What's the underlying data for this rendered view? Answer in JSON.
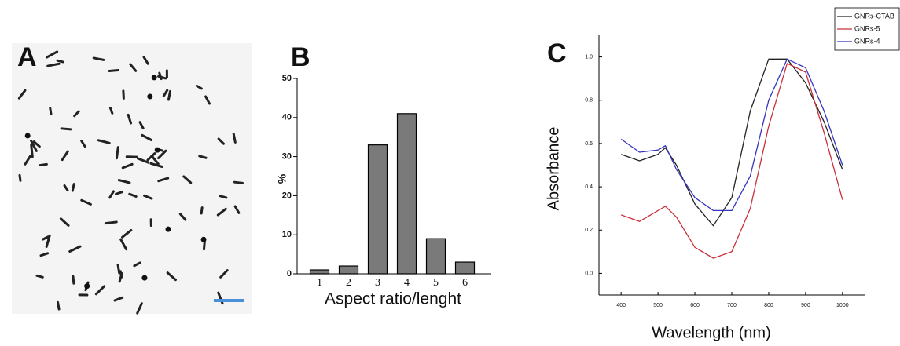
{
  "panel_a": {
    "label": "A"
  },
  "chart_data": [
    {
      "type": "bar",
      "label": "B",
      "xlabel": "Aspect ratio/lenght",
      "ylabel": "%",
      "categories": [
        "1",
        "2",
        "3",
        "4",
        "5",
        "6"
      ],
      "values": [
        1,
        2,
        33,
        41,
        9,
        3
      ],
      "color": "#7a7a7a",
      "ylim": [
        0,
        50
      ],
      "yticks": [
        0,
        10,
        20,
        30,
        40,
        50
      ],
      "grid": false
    },
    {
      "type": "line",
      "label": "C",
      "xlabel": "Wavelength (nm)",
      "ylabel": "Absorbance",
      "x": [
        400,
        450,
        500,
        520,
        550,
        600,
        650,
        700,
        750,
        800,
        850,
        900,
        950,
        1000
      ],
      "series": [
        {
          "name": "GNRs-CTAB",
          "color": "#222222",
          "values": [
            0.55,
            0.52,
            0.55,
            0.58,
            0.5,
            0.32,
            0.22,
            0.35,
            0.75,
            0.99,
            0.99,
            0.88,
            0.7,
            0.48
          ]
        },
        {
          "name": "GNRs-5",
          "color": "#c8303a",
          "values": [
            0.27,
            0.24,
            0.29,
            0.31,
            0.26,
            0.12,
            0.07,
            0.1,
            0.3,
            0.68,
            0.97,
            0.93,
            0.65,
            0.34
          ]
        },
        {
          "name": "GNRs-4",
          "color": "#3535c0",
          "values": [
            0.62,
            0.56,
            0.57,
            0.59,
            0.48,
            0.35,
            0.29,
            0.29,
            0.45,
            0.8,
            0.99,
            0.95,
            0.75,
            0.5
          ]
        }
      ],
      "xlim": [
        340,
        1060
      ],
      "xticks": [
        400,
        500,
        600,
        700,
        800,
        900,
        1000
      ],
      "ylim": [
        -0.1,
        1.1
      ],
      "yticks": [
        {
          "value": 0,
          "label": "0.0"
        },
        0.2,
        0.4,
        0.6,
        0.8,
        {
          "value": 1,
          "label": "1.0"
        }
      ],
      "grid": false,
      "legend": "top-right"
    }
  ]
}
